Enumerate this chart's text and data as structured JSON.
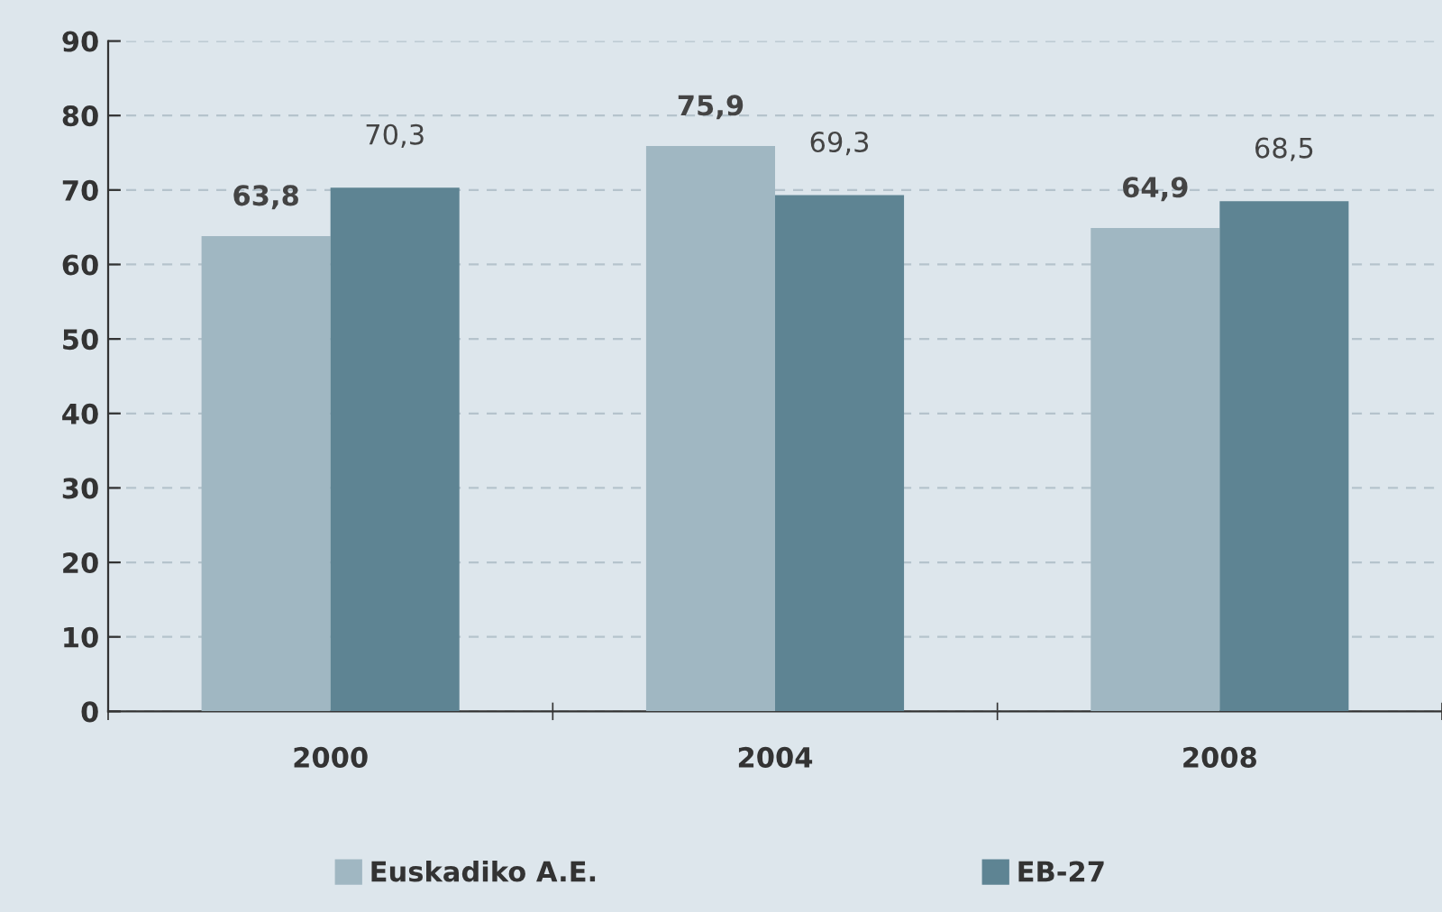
{
  "chart_data": {
    "type": "bar",
    "categories": [
      "2000",
      "2004",
      "2008"
    ],
    "series": [
      {
        "name": "Euskadiko A.E.",
        "color": "#a0b7c2",
        "values": [
          63.8,
          75.9,
          64.9
        ],
        "value_labels": [
          "63,8",
          "75,9",
          "64,9"
        ]
      },
      {
        "name": "EB-27",
        "color": "#5e8493",
        "values": [
          70.3,
          69.3,
          68.5
        ],
        "value_labels": [
          "70,3",
          "69,3",
          "68,5"
        ]
      }
    ],
    "ylim": [
      0,
      90
    ],
    "yticks": [
      0,
      10,
      20,
      30,
      40,
      50,
      60,
      70,
      80,
      90
    ],
    "grid": "y",
    "legend": "bottom"
  }
}
